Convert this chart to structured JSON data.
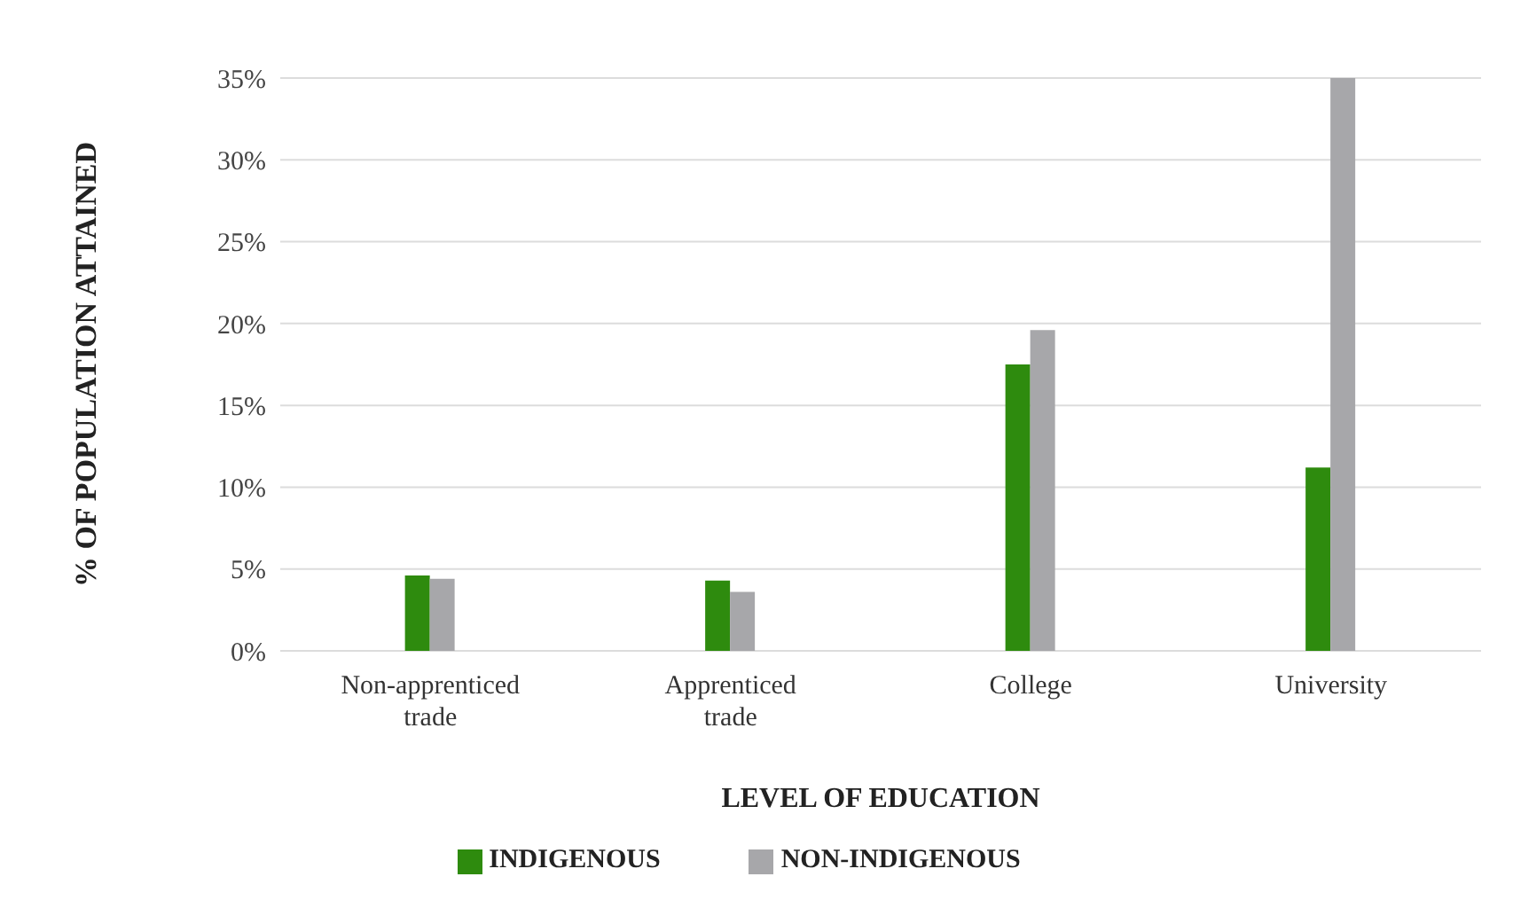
{
  "chart_data": {
    "type": "bar",
    "xlabel": "LEVEL OF EDUCATION",
    "ylabel": "% OF POPULATION ATTAINED",
    "categories": [
      "Non-apprenticed trade",
      "Apprenticed trade",
      "College",
      "University"
    ],
    "series": [
      {
        "name": "INDIGENOUS",
        "color": "#2e8b0e",
        "values": [
          4.6,
          4.3,
          17.5,
          11.2
        ]
      },
      {
        "name": "NON-INDIGENOUS",
        "color": "#a7a7aa",
        "values": [
          4.4,
          3.6,
          19.6,
          35.0
        ]
      }
    ],
    "ylim": [
      0,
      35
    ],
    "yticks": [
      {
        "value": 0,
        "label": "0%"
      },
      {
        "value": 5,
        "label": "5%"
      },
      {
        "value": 10,
        "label": "10%"
      },
      {
        "value": 15,
        "label": "15%"
      },
      {
        "value": 20,
        "label": "20%"
      },
      {
        "value": 25,
        "label": "25%"
      },
      {
        "value": 30,
        "label": "30%"
      },
      {
        "value": 35,
        "label": "35%"
      }
    ],
    "grid": "y",
    "legend": "bottom"
  }
}
